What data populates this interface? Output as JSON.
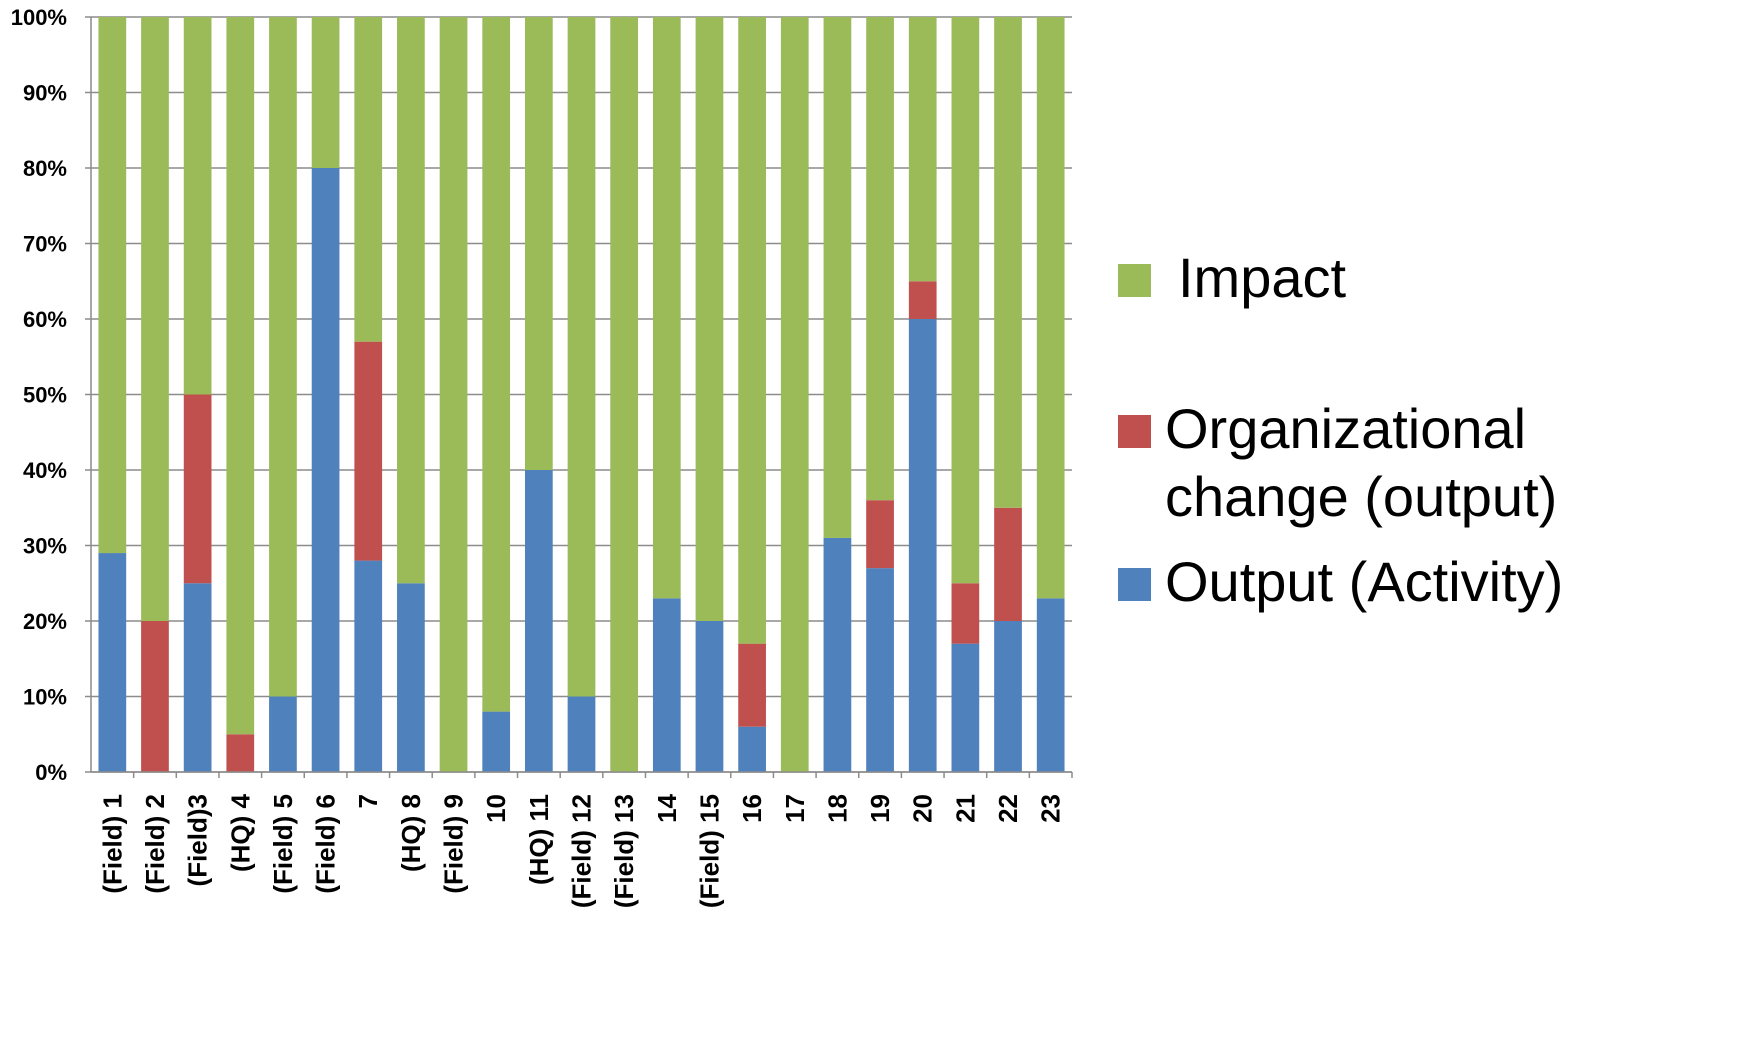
{
  "chart_data": {
    "type": "bar",
    "stacked": true,
    "percent_stacked": true,
    "title": "",
    "xlabel": "",
    "ylabel": "",
    "ylim": [
      0,
      100
    ],
    "yticks": [
      "0%",
      "10%",
      "20%",
      "30%",
      "40%",
      "50%",
      "60%",
      "70%",
      "80%",
      "90%",
      "100%"
    ],
    "grid": true,
    "legend_position": "right",
    "categories": [
      "(Field) 1",
      "(Field) 2",
      "(Field)3",
      "(HQ) 4",
      "(Field) 5",
      "(Field) 6",
      "7",
      "(HQ) 8",
      "(Field) 9",
      "10",
      "(HQ) 11",
      "(Field) 12",
      "(Field) 13",
      "14",
      "(Field) 15",
      "16",
      "17",
      "18",
      "19",
      "20",
      "21",
      "22",
      "23"
    ],
    "series": [
      {
        "name": "Output (Activity)",
        "color": "#4F81BD",
        "values": [
          29,
          0,
          25,
          0,
          10,
          80,
          28,
          25,
          0,
          8,
          40,
          10,
          0,
          23,
          20,
          6,
          0,
          31,
          27,
          60,
          17,
          20,
          23
        ]
      },
      {
        "name": "Organizational change (output)",
        "color": "#C0504D",
        "values": [
          0,
          20,
          25,
          5,
          0,
          0,
          29,
          0,
          0,
          0,
          0,
          0,
          0,
          0,
          0,
          11,
          0,
          0,
          9,
          5,
          8,
          15,
          0
        ]
      },
      {
        "name": "Impact",
        "color": "#9BBB59",
        "values": [
          71,
          80,
          50,
          95,
          90,
          20,
          43,
          75,
          100,
          92,
          60,
          90,
          100,
          77,
          80,
          83,
          100,
          69,
          64,
          35,
          75,
          65,
          77
        ]
      }
    ]
  },
  "legend": {
    "items": [
      {
        "lines": [
          "Impact"
        ],
        "color": "#9BBB59"
      },
      {
        "lines": [
          "Organizational",
          "change (output)"
        ],
        "color": "#C0504D"
      },
      {
        "lines": [
          "Output (Activity)"
        ],
        "color": "#4F81BD"
      }
    ]
  }
}
